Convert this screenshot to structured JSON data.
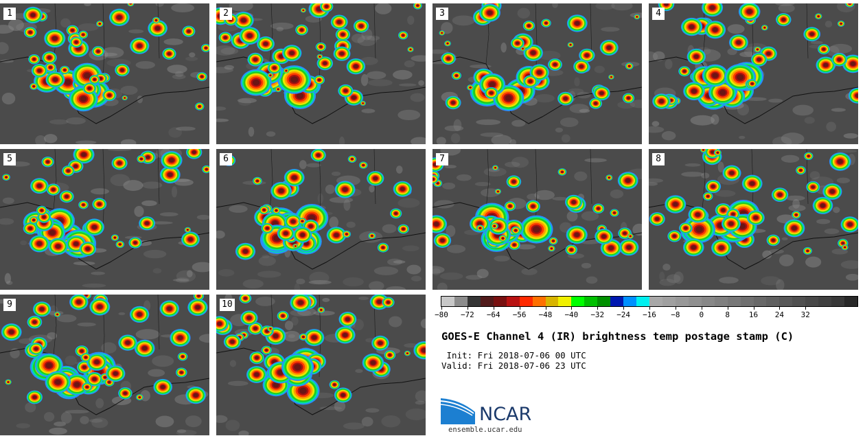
{
  "panels": [
    {
      "label": "1"
    },
    {
      "label": "2"
    },
    {
      "label": "3"
    },
    {
      "label": "4"
    },
    {
      "label": "5"
    },
    {
      "label": "6"
    },
    {
      "label": "7"
    },
    {
      "label": "8"
    },
    {
      "label": "9"
    },
    {
      "label": "10"
    }
  ],
  "colorbar": {
    "colors": [
      "#c8c8c8",
      "#8c8c8c",
      "#353535",
      "#501a1a",
      "#781010",
      "#b81212",
      "#ff2a00",
      "#ff7000",
      "#d8b400",
      "#f0f000",
      "#00ff00",
      "#00c000",
      "#009000",
      "#0018b0",
      "#0090ff",
      "#00f0f0",
      "#a8a8a8",
      "#a0a0a0",
      "#989898",
      "#909090",
      "#888888",
      "#808080",
      "#787878",
      "#707070",
      "#686868",
      "#606060",
      "#585858",
      "#505050",
      "#484848",
      "#404040",
      "#383838",
      "#282828"
    ],
    "ticks": [
      "−80",
      "−72",
      "−64",
      "−56",
      "−48",
      "−40",
      "−32",
      "−24",
      "−16",
      "−8",
      "0",
      "8",
      "16",
      "24",
      "32"
    ]
  },
  "title": "GOES-E Channel 4 (IR) brightness temp postage stamp (C)",
  "init_line": " Init: Fri 2018-07-06 00 UTC",
  "valid_line": "Valid: Fri 2018-07-06 23 UTC",
  "logo": {
    "text": "NCAR",
    "brand_color": "#1b3a6b",
    "accent": "#1c7fd1"
  },
  "site": "ensemble.ucar.edu"
}
